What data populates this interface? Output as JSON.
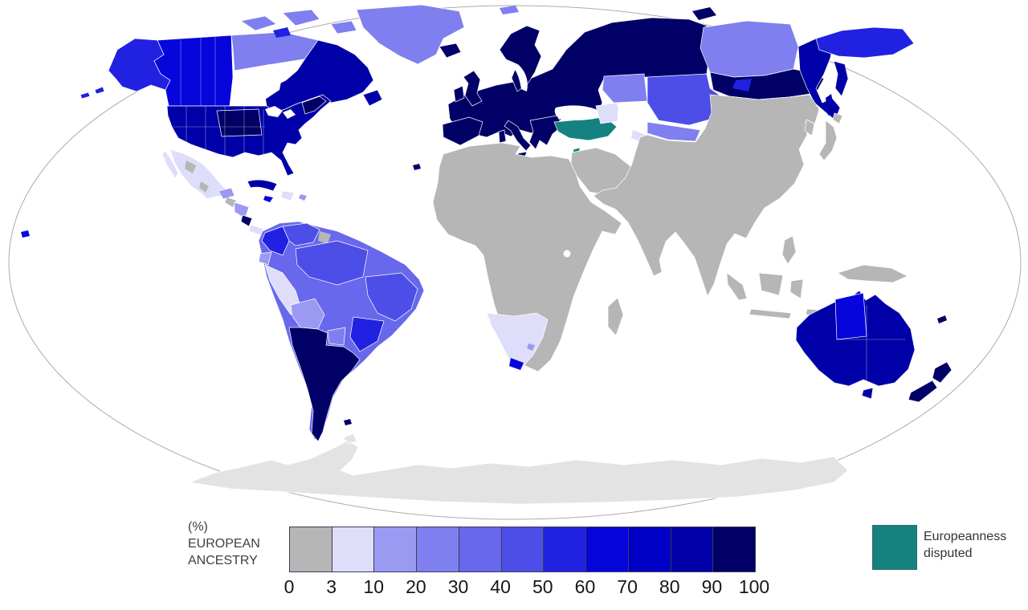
{
  "map": {
    "description": "World choropleth map of percentage of European ancestry by region, Robinson-style projection on white ocean",
    "antarctica_note": "no data (pale gray)"
  },
  "colors": {
    "c0": "#b6b6b6",
    "c3": "#dedefa",
    "c10": "#9a9af2",
    "c20": "#7f7fef",
    "c30": "#6868ec",
    "c40": "#4d4de8",
    "c50": "#2121e2",
    "c60": "#0505dc",
    "c70": "#0000c6",
    "c80": "#0000a8",
    "c90": "#000066",
    "disputed": "#15827f",
    "antarctica": "#e3e3e3",
    "ocean": "#ffffff",
    "outline": "#ababab"
  },
  "legend": {
    "unit_label": "(%)",
    "title_line1": "EUROPEAN",
    "title_line2": "ANCESTRY",
    "ticks": [
      "0",
      "3",
      "10",
      "20",
      "30",
      "40",
      "50",
      "60",
      "70",
      "80",
      "90",
      "100"
    ],
    "swatch_keys": [
      "c0",
      "c3",
      "c10",
      "c20",
      "c30",
      "c40",
      "c50",
      "c60",
      "c70",
      "c80",
      "c90"
    ],
    "disputed_line1": "Europeanness",
    "disputed_line2": "disputed"
  },
  "chart_data": {
    "type": "choropleth_map",
    "title": "(%) EUROPEAN ANCESTRY",
    "bins": [
      "0-3",
      "3-10",
      "10-20",
      "20-30",
      "30-40",
      "40-50",
      "50-60",
      "60-70",
      "70-80",
      "80-90",
      "90-100"
    ],
    "special_category": "Europeanness disputed",
    "regions": [
      {
        "name": "Europe",
        "bin": "90-100"
      },
      {
        "name": "Iceland",
        "bin": "90-100"
      },
      {
        "name": "United Kingdom & Ireland",
        "bin": "90-100"
      },
      {
        "name": "European Russia",
        "bin": "90-100"
      },
      {
        "name": "Central Siberia",
        "bin": "20-30"
      },
      {
        "name": "Southern Siberia",
        "bin": "90-100"
      },
      {
        "name": "Russian Far East",
        "bin": "70-90"
      },
      {
        "name": "Chukotka / NE Russia",
        "bin": "50-60"
      },
      {
        "name": "Kazakhstan",
        "bin": "40-50"
      },
      {
        "name": "Caucasus",
        "bin": "3-10"
      },
      {
        "name": "Central Asia",
        "bin": "10-30"
      },
      {
        "name": "Turkey",
        "bin": "disputed"
      },
      {
        "name": "Israel",
        "bin": "disputed"
      },
      {
        "name": "Alaska",
        "bin": "50-60"
      },
      {
        "name": "Western Canada",
        "bin": "60-70"
      },
      {
        "name": "Northern Canada",
        "bin": "20-30"
      },
      {
        "name": "Eastern Canada",
        "bin": "70-90"
      },
      {
        "name": "Greenland",
        "bin": "20-30"
      },
      {
        "name": "United States",
        "bin": "70-100"
      },
      {
        "name": "Mexico",
        "bin": "3-20"
      },
      {
        "name": "Central America",
        "bin": "0-50"
      },
      {
        "name": "Costa Rica",
        "bin": "90-100"
      },
      {
        "name": "Cuba",
        "bin": "70-80"
      },
      {
        "name": "Colombia",
        "bin": "50-60"
      },
      {
        "name": "Venezuela",
        "bin": "40-50"
      },
      {
        "name": "Ecuador",
        "bin": "10-20"
      },
      {
        "name": "Peru",
        "bin": "3-10"
      },
      {
        "name": "Bolivia",
        "bin": "10-20"
      },
      {
        "name": "Brazil north & center",
        "bin": "30-50"
      },
      {
        "name": "Brazil south",
        "bin": "50-60"
      },
      {
        "name": "Paraguay",
        "bin": "20-30"
      },
      {
        "name": "Argentina, Chile, Uruguay",
        "bin": "90-100"
      },
      {
        "name": "Africa (most)",
        "bin": "0-3"
      },
      {
        "name": "South Africa & Namibia",
        "bin": "3-10"
      },
      {
        "name": "Middle East",
        "bin": "0-3"
      },
      {
        "name": "South, East & SE Asia",
        "bin": "0-3"
      },
      {
        "name": "Indonesia & New Guinea",
        "bin": "0-3"
      },
      {
        "name": "Australia",
        "bin": "70-90"
      },
      {
        "name": "Northern Territory (Australia)",
        "bin": "60-70"
      },
      {
        "name": "New Zealand",
        "bin": "90-100"
      },
      {
        "name": "Antarctica",
        "bin": "no data"
      }
    ]
  }
}
